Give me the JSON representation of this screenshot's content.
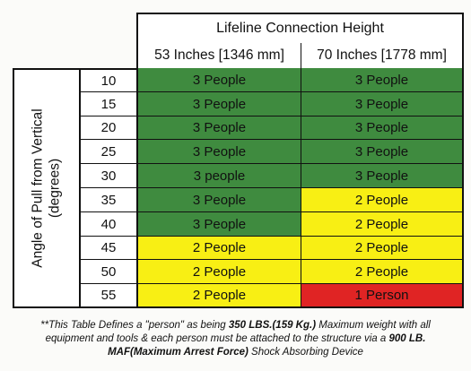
{
  "table": {
    "group_header": "Lifeline Connection Height",
    "column_headers": [
      "53 Inches [1346 mm]",
      "70 Inches [1778 mm]"
    ],
    "row_header_line1": "Angle of Pull from Vertical",
    "row_header_line2": "(degrees)",
    "rows": [
      {
        "angle": "10",
        "c53": "3 People",
        "c70": "3 People",
        "color53": "green",
        "color70": "green"
      },
      {
        "angle": "15",
        "c53": "3 People",
        "c70": "3 People",
        "color53": "green",
        "color70": "green"
      },
      {
        "angle": "20",
        "c53": "3 People",
        "c70": "3 People",
        "color53": "green",
        "color70": "green"
      },
      {
        "angle": "25",
        "c53": "3 People",
        "c70": "3 People",
        "color53": "green",
        "color70": "green"
      },
      {
        "angle": "30",
        "c53": "3 people",
        "c70": "3 People",
        "color53": "green",
        "color70": "green"
      },
      {
        "angle": "35",
        "c53": "3 People",
        "c70": "2 People",
        "color53": "green",
        "color70": "yellow"
      },
      {
        "angle": "40",
        "c53": "3 People",
        "c70": "2 People",
        "color53": "green",
        "color70": "yellow"
      },
      {
        "angle": "45",
        "c53": "2 People",
        "c70": "2 People",
        "color53": "yellow",
        "color70": "yellow"
      },
      {
        "angle": "50",
        "c53": "2 People",
        "c70": "2 People",
        "color53": "yellow",
        "color70": "yellow"
      },
      {
        "angle": "55",
        "c53": "2 People",
        "c70": "1 Person",
        "color53": "yellow",
        "color70": "red"
      }
    ]
  },
  "colors": {
    "green": "#3f8b3f",
    "yellow": "#f8ef14",
    "red": "#e02424"
  },
  "footnote": {
    "part1": "**This Table Defines a \"person\" as being ",
    "bold1": "350 LBS.(159 Kg.)",
    "part2": " Maximum weight with all",
    "line2_part1": "equipment and tools & each person must be attached to the structure via a ",
    "bold2": "900 LB.",
    "bold3": "MAF(Maximum Arrest Force)",
    "part3": " Shock Absorbing Device"
  }
}
